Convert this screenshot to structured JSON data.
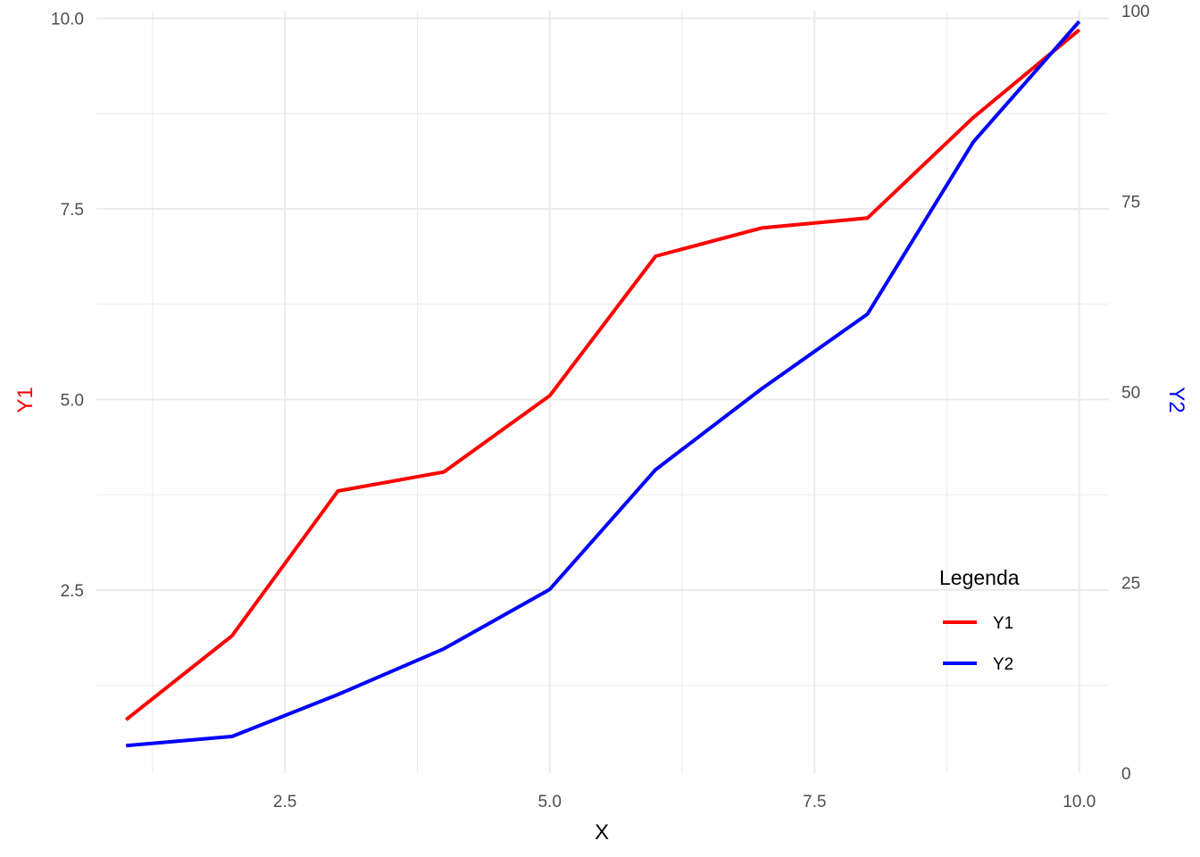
{
  "chart_data": {
    "type": "line",
    "xlabel": "X",
    "ylabel_left": "Y1",
    "ylabel_right": "Y2",
    "x": [
      1,
      2,
      3,
      4,
      5,
      6,
      7,
      8,
      9,
      10
    ],
    "xlim": [
      0.72,
      10.28
    ],
    "xticks": [
      2.5,
      5.0,
      7.5,
      10.0
    ],
    "xtick_labels": [
      "2.5",
      "5.0",
      "7.5",
      "10.0"
    ],
    "ylim_left": [
      0.1,
      10.1
    ],
    "yticks_left": [
      2.5,
      5.0,
      7.5,
      10.0
    ],
    "ytick_labels_left": [
      "2.5",
      "5.0",
      "7.5",
      "10.0"
    ],
    "ylim_right": [
      0,
      100
    ],
    "yticks_right": [
      0,
      25,
      50,
      75,
      100
    ],
    "ytick_labels_right": [
      "0",
      "25",
      "50",
      "75",
      "100"
    ],
    "grid": true,
    "legend": {
      "title": "Legenda",
      "position": "bottom-right"
    },
    "series": [
      {
        "name": "Y1",
        "axis": "left",
        "color": "#ff0000",
        "values": [
          0.8,
          1.9,
          3.8,
          4.05,
          5.05,
          6.88,
          7.25,
          7.38,
          8.7,
          9.85
        ]
      },
      {
        "name": "Y2",
        "axis": "right",
        "color": "#0000ff",
        "values": [
          3.6,
          4.8,
          10.3,
          16.3,
          24.1,
          39.8,
          50.4,
          60.2,
          82.8,
          98.6
        ]
      }
    ],
    "colors": {
      "y1": "#ff0000",
      "y2": "#0000ff",
      "grid": "#ebebeb",
      "tick_text": "#4d4d4d"
    }
  }
}
